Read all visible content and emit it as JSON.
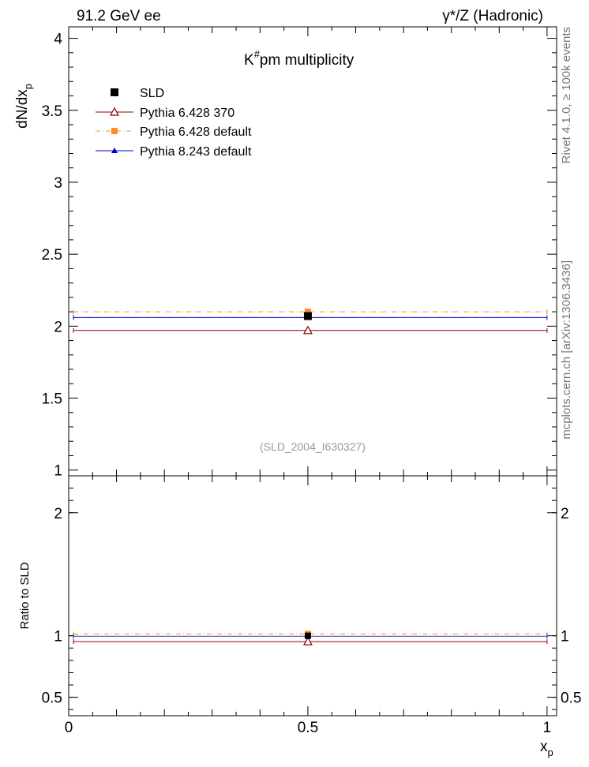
{
  "header": {
    "left": "91.2 GeV ee",
    "right": "γ*/Z (Hadronic)"
  },
  "side_labels": {
    "rivet": "Rivet 4.1.0, ≥ 100k events",
    "mcplots": "mcplots.cern.ch [arXiv:1306.3436]"
  },
  "chart_data": {
    "type": "scatter",
    "title": "K#pm multiplicity",
    "title_main": "K",
    "title_sup": "#",
    "title_rest": "pm  multiplicity",
    "analysis_tag": "(SLD_2004_I630327)",
    "xlabel": "x",
    "xlabel_sub": "p",
    "ylabel_main": "dN/dx",
    "ylabel_sub": "p",
    "ratio_ylabel": "Ratio to SLD",
    "xlim": [
      0,
      1.02
    ],
    "ylim": [
      0.96,
      4.08
    ],
    "ratio_ylim": [
      0.35,
      2.3
    ],
    "x_ticks": [
      "0",
      "0.5",
      "1"
    ],
    "y_ticks": [
      "1",
      "1.5",
      "2",
      "2.5",
      "3",
      "3.5",
      "4"
    ],
    "ratio_y_ticks": [
      "0.5",
      "1",
      "2"
    ],
    "ratio_y_ticks_right": [
      "0.5",
      "1",
      "2"
    ],
    "legend": [
      "SLD",
      "Pythia 6.428 370",
      "Pythia 6.428 default",
      "Pythia 8.243 default"
    ],
    "series": [
      {
        "name": "SLD",
        "color": "#000000",
        "marker": "filled-square",
        "line": "none",
        "x": 0.5,
        "x_range": [
          0.01,
          1.0
        ],
        "y": 2.07,
        "ratio": 1.0
      },
      {
        "name": "Pythia 6.428 370",
        "color": "#8b0000",
        "marker": "open-triangle",
        "line": "solid",
        "x": 0.5,
        "x_range": [
          0.01,
          1.0
        ],
        "y": 1.97,
        "ratio": 0.952
      },
      {
        "name": "Pythia 6.428 default",
        "color": "#ff8c2a",
        "marker": "filled-square",
        "line": "dashdot",
        "x": 0.5,
        "x_range": [
          0.01,
          1.0
        ],
        "y": 2.1,
        "ratio": 1.015
      },
      {
        "name": "Pythia 8.243 default",
        "color": "#0000cc",
        "marker": "filled-triangle",
        "line": "solid",
        "x": 0.5,
        "x_range": [
          0.01,
          1.0
        ],
        "y": 2.06,
        "ratio": 0.996
      }
    ]
  }
}
